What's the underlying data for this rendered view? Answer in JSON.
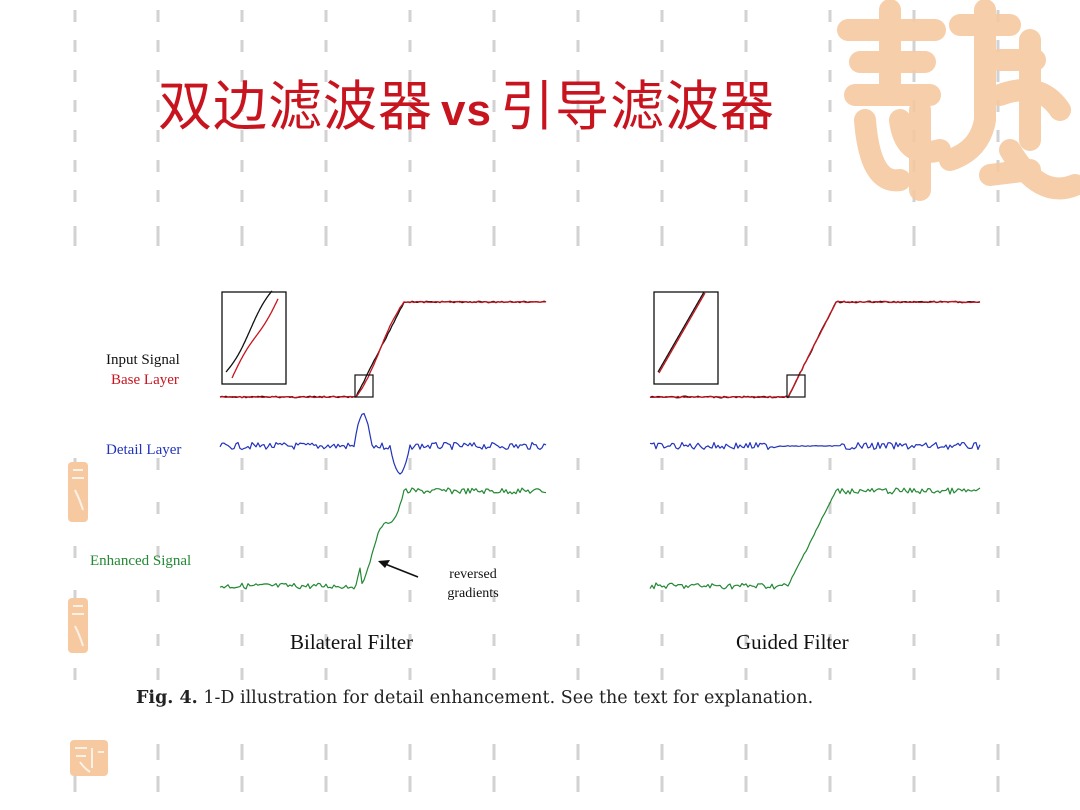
{
  "slide": {
    "title_left": "双边滤波器",
    "title_vs": "vs",
    "title_right": "引导滤波器"
  },
  "figure": {
    "labels": {
      "input_signal": "Input Signal",
      "base_layer": "Base Layer",
      "detail_layer": "Detail Layer",
      "enhanced_signal": "Enhanced Signal"
    },
    "annotation_line1": "reversed",
    "annotation_line2": "gradients",
    "panels": [
      {
        "title": "Bilateral Filter"
      },
      {
        "title": "Guided Filter"
      }
    ],
    "caption_fig": "Fig. 4.",
    "caption_text": "1-D illustration for detail enhancement. See the text for explanation."
  },
  "colors": {
    "title": "#c8141e",
    "input_signal": "#111111",
    "base_layer": "#c8141e",
    "detail_layer": "#2233bb",
    "enhanced_signal": "#228833",
    "decoration": "#f6c9a0"
  }
}
